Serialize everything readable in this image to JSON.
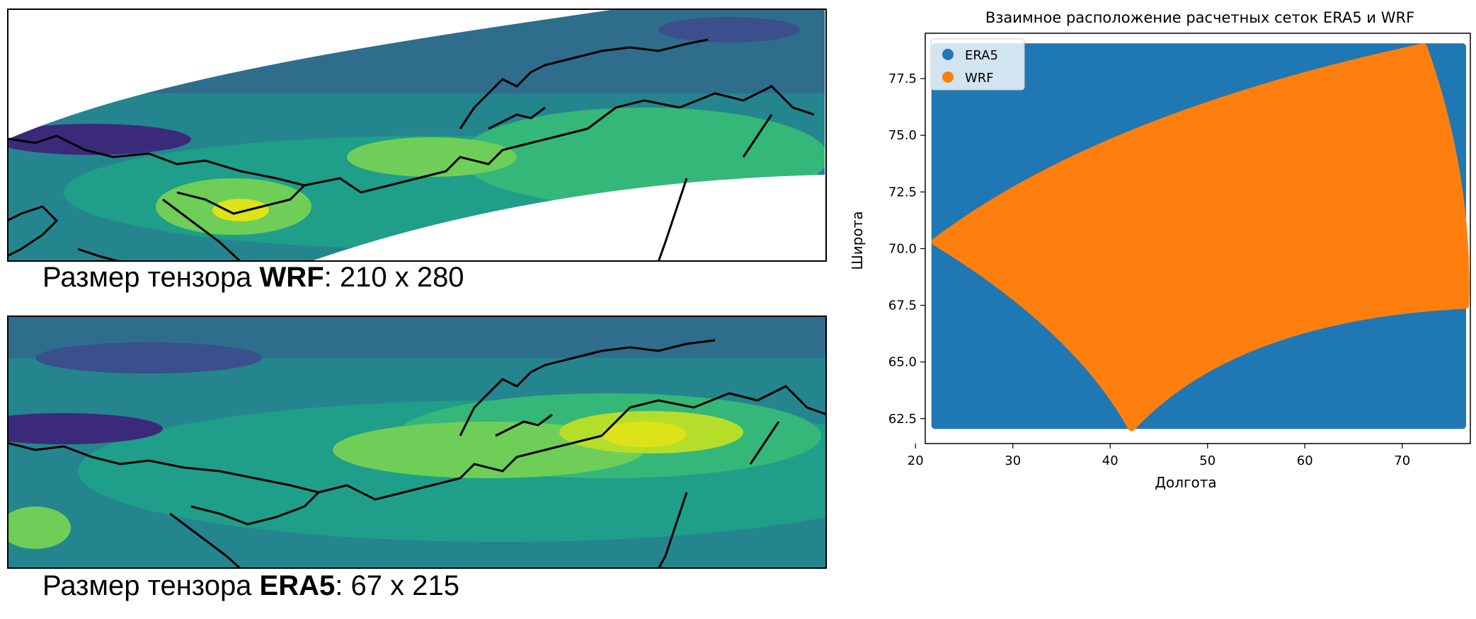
{
  "wrf_panel": {
    "caption_prefix": "Размер тензора ",
    "caption_bold": "WRF",
    "caption_suffix": ": 210 x 280",
    "colormap_colors": [
      "#3b2a7a",
      "#3a4f8c",
      "#2f6d8d",
      "#25858e",
      "#1f9e89",
      "#35b779",
      "#6ece58",
      "#b5de2b",
      "#dde318"
    ]
  },
  "era5_panel": {
    "caption_prefix": "Размер тензора ",
    "caption_bold": "ERA5",
    "caption_suffix": ": 67 x 215"
  },
  "chart_data": {
    "type": "scatter",
    "title": "Взаимное расположение расчетных сеток ERA5 и WRF",
    "xlabel": "Долгота",
    "ylabel": "Широта",
    "xlim": [
      21,
      77
    ],
    "ylim": [
      61.4,
      79.5
    ],
    "xticks": [
      "20",
      "30",
      "40",
      "50",
      "60",
      "70"
    ],
    "yticks": [
      "62.5",
      "65.0",
      "67.5",
      "70.0",
      "72.5",
      "75.0",
      "77.5"
    ],
    "legend_position": "top-left",
    "series": [
      {
        "name": "ERA5",
        "color": "#1f77b4",
        "extent": {
          "lon": [
            22,
            76.2
          ],
          "lat": [
            62.2,
            78.9
          ]
        }
      },
      {
        "name": "WRF",
        "color": "#ff7f0e",
        "corners": {
          "west": [
            22,
            70.3
          ],
          "south": [
            42.2,
            62.1
          ],
          "east": [
            76.5,
            67.5
          ],
          "north": [
            72.2,
            78.9
          ]
        }
      }
    ]
  }
}
